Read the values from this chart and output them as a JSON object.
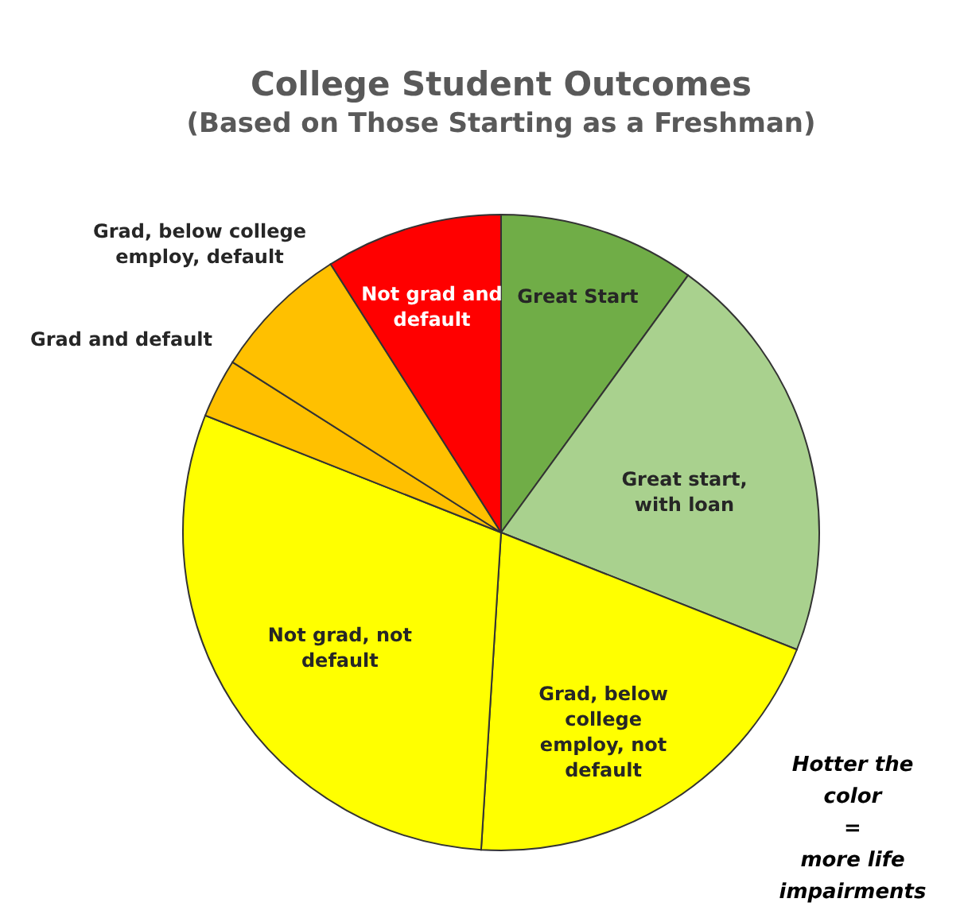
{
  "chart_data": {
    "type": "pie",
    "title": "College Student Outcomes",
    "subtitle": "(Based on Those Starting as a Freshman)",
    "categories": [
      "Great Start",
      "Great start, with loan",
      "Grad, below college employ, not default",
      "Not grad, not default",
      "Grad and default",
      "Grad, below college employ, default",
      "Not grad and default"
    ],
    "values": [
      10,
      21,
      20,
      30,
      3,
      7,
      9
    ],
    "colors": [
      "#70ad47",
      "#a9d18e",
      "#ffff00",
      "#ffff00",
      "#ffc000",
      "#ffc000",
      "#ff0000"
    ],
    "annotations": [
      "Hotter the\ncolor\n=\nmore life\nimpairments"
    ],
    "legend": false
  }
}
